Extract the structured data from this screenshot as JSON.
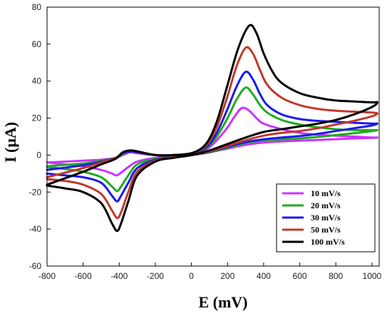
{
  "chart_data": {
    "type": "line",
    "xlabel": "E (mV)",
    "ylabel": "I (μA)",
    "xlim": [
      -800,
      1040
    ],
    "ylim": [
      -60,
      80
    ],
    "x_ticks": [
      -800,
      -600,
      -400,
      -200,
      0,
      200,
      400,
      600,
      800,
      1000
    ],
    "y_ticks": [
      -60,
      -40,
      -20,
      0,
      20,
      40,
      60,
      80
    ],
    "grid": false,
    "legend_position": "bottom-right",
    "series": [
      {
        "name": "10 mV/s",
        "color": "#cc33ff",
        "forward": [
          [
            -800,
            -4
          ],
          [
            -600,
            -3
          ],
          [
            -500,
            -2.5
          ],
          [
            -420,
            -1.5
          ],
          [
            -380,
            0
          ],
          [
            -340,
            1.5
          ],
          [
            -300,
            1
          ],
          [
            -200,
            0
          ],
          [
            -100,
            0
          ],
          [
            0,
            1
          ],
          [
            80,
            3
          ],
          [
            140,
            8
          ],
          [
            200,
            15
          ],
          [
            240,
            21
          ],
          [
            280,
            25.5
          ],
          [
            320,
            24
          ],
          [
            360,
            20
          ],
          [
            400,
            17
          ],
          [
            500,
            14
          ],
          [
            600,
            12
          ],
          [
            700,
            11
          ],
          [
            800,
            10.5
          ],
          [
            900,
            10
          ],
          [
            1000,
            9.5
          ],
          [
            1030,
            9.5
          ]
        ],
        "reverse": [
          [
            1030,
            9.5
          ],
          [
            1000,
            9.3
          ],
          [
            900,
            9
          ],
          [
            800,
            8.6
          ],
          [
            700,
            8.2
          ],
          [
            600,
            7.8
          ],
          [
            500,
            7.4
          ],
          [
            400,
            6.8
          ],
          [
            300,
            5.5
          ],
          [
            200,
            3.5
          ],
          [
            100,
            1.5
          ],
          [
            0,
            0
          ],
          [
            -100,
            -0.8
          ],
          [
            -200,
            -1.5
          ],
          [
            -300,
            -3.5
          ],
          [
            -350,
            -6.5
          ],
          [
            -390,
            -9.5
          ],
          [
            -415,
            -11
          ],
          [
            -440,
            -10
          ],
          [
            -500,
            -8
          ],
          [
            -600,
            -6
          ],
          [
            -700,
            -5
          ],
          [
            -800,
            -4
          ]
        ]
      },
      {
        "name": "20 mV/s",
        "color": "#22aa22",
        "forward": [
          [
            -800,
            -6
          ],
          [
            -600,
            -4.5
          ],
          [
            -500,
            -3
          ],
          [
            -420,
            -1.5
          ],
          [
            -380,
            0.5
          ],
          [
            -340,
            2
          ],
          [
            -300,
            1.5
          ],
          [
            -200,
            0
          ],
          [
            -100,
            0
          ],
          [
            0,
            1
          ],
          [
            80,
            3.5
          ],
          [
            140,
            10
          ],
          [
            200,
            20
          ],
          [
            250,
            30
          ],
          [
            300,
            36.5
          ],
          [
            340,
            33
          ],
          [
            380,
            27
          ],
          [
            420,
            23
          ],
          [
            500,
            19
          ],
          [
            600,
            16.5
          ],
          [
            700,
            15
          ],
          [
            800,
            14
          ],
          [
            900,
            13.5
          ],
          [
            1000,
            13.5
          ],
          [
            1030,
            13.5
          ]
        ],
        "reverse": [
          [
            1030,
            13.5
          ],
          [
            1000,
            13
          ],
          [
            900,
            11.8
          ],
          [
            800,
            10.8
          ],
          [
            700,
            9.8
          ],
          [
            600,
            9
          ],
          [
            500,
            8.5
          ],
          [
            400,
            8
          ],
          [
            300,
            6.5
          ],
          [
            200,
            4
          ],
          [
            100,
            1.5
          ],
          [
            0,
            0
          ],
          [
            -100,
            -1
          ],
          [
            -200,
            -2
          ],
          [
            -300,
            -5
          ],
          [
            -350,
            -11
          ],
          [
            -390,
            -17
          ],
          [
            -412,
            -19.5
          ],
          [
            -440,
            -17
          ],
          [
            -500,
            -12
          ],
          [
            -600,
            -9
          ],
          [
            -700,
            -7.5
          ],
          [
            -800,
            -6.5
          ]
        ]
      },
      {
        "name": "30 mV/s",
        "color": "#1a1aee",
        "forward": [
          [
            -800,
            -8
          ],
          [
            -600,
            -5.5
          ],
          [
            -500,
            -3.5
          ],
          [
            -420,
            -1.5
          ],
          [
            -380,
            1
          ],
          [
            -340,
            2
          ],
          [
            -300,
            1.5
          ],
          [
            -200,
            0
          ],
          [
            -100,
            0
          ],
          [
            0,
            1
          ],
          [
            80,
            4
          ],
          [
            140,
            12
          ],
          [
            200,
            25
          ],
          [
            250,
            37
          ],
          [
            300,
            45
          ],
          [
            340,
            41
          ],
          [
            380,
            33
          ],
          [
            420,
            27
          ],
          [
            500,
            22
          ],
          [
            600,
            19.5
          ],
          [
            700,
            18.5
          ],
          [
            800,
            18
          ],
          [
            900,
            17.5
          ],
          [
            1000,
            17
          ],
          [
            1030,
            17
          ]
        ],
        "reverse": [
          [
            1030,
            17
          ],
          [
            1000,
            16
          ],
          [
            900,
            14.5
          ],
          [
            800,
            13
          ],
          [
            700,
            11.5
          ],
          [
            600,
            10.3
          ],
          [
            500,
            9.5
          ],
          [
            400,
            8.5
          ],
          [
            300,
            7
          ],
          [
            200,
            4.5
          ],
          [
            100,
            1.8
          ],
          [
            0,
            0
          ],
          [
            -100,
            -1
          ],
          [
            -200,
            -2.5
          ],
          [
            -300,
            -7
          ],
          [
            -350,
            -15
          ],
          [
            -390,
            -22
          ],
          [
            -412,
            -25
          ],
          [
            -440,
            -22
          ],
          [
            -500,
            -15
          ],
          [
            -600,
            -12
          ],
          [
            -700,
            -11
          ],
          [
            -800,
            -10
          ]
        ]
      },
      {
        "name": "50 mV/s",
        "color": "#c0392b",
        "forward": [
          [
            -800,
            -12
          ],
          [
            -600,
            -7
          ],
          [
            -500,
            -4
          ],
          [
            -420,
            -1.5
          ],
          [
            -380,
            1.5
          ],
          [
            -340,
            2.5
          ],
          [
            -300,
            2
          ],
          [
            -200,
            0
          ],
          [
            -100,
            0
          ],
          [
            0,
            1
          ],
          [
            80,
            5
          ],
          [
            140,
            15
          ],
          [
            200,
            32
          ],
          [
            250,
            48
          ],
          [
            300,
            58
          ],
          [
            340,
            55
          ],
          [
            380,
            46
          ],
          [
            420,
            38
          ],
          [
            500,
            31
          ],
          [
            600,
            27
          ],
          [
            700,
            25
          ],
          [
            800,
            24
          ],
          [
            900,
            23.5
          ],
          [
            1000,
            23
          ],
          [
            1030,
            22.5
          ]
        ],
        "reverse": [
          [
            1030,
            22.5
          ],
          [
            1000,
            21
          ],
          [
            900,
            18.5
          ],
          [
            800,
            16.5
          ],
          [
            700,
            14.5
          ],
          [
            600,
            13
          ],
          [
            500,
            12
          ],
          [
            400,
            10.5
          ],
          [
            300,
            8
          ],
          [
            200,
            5
          ],
          [
            100,
            2
          ],
          [
            0,
            0
          ],
          [
            -100,
            -1.2
          ],
          [
            -200,
            -3
          ],
          [
            -300,
            -9
          ],
          [
            -350,
            -20
          ],
          [
            -390,
            -31
          ],
          [
            -412,
            -34
          ],
          [
            -440,
            -30
          ],
          [
            -500,
            -21
          ],
          [
            -600,
            -16
          ],
          [
            -700,
            -14
          ],
          [
            -800,
            -13
          ]
        ]
      },
      {
        "name": "100 mV/s",
        "color": "#000000",
        "forward": [
          [
            -800,
            -16
          ],
          [
            -600,
            -9
          ],
          [
            -500,
            -5
          ],
          [
            -420,
            -2
          ],
          [
            -380,
            1.5
          ],
          [
            -340,
            2.5
          ],
          [
            -300,
            2
          ],
          [
            -200,
            0
          ],
          [
            -100,
            0
          ],
          [
            0,
            1
          ],
          [
            80,
            6
          ],
          [
            140,
            18
          ],
          [
            200,
            38
          ],
          [
            260,
            58
          ],
          [
            320,
            70
          ],
          [
            360,
            66
          ],
          [
            400,
            55
          ],
          [
            450,
            45
          ],
          [
            500,
            39
          ],
          [
            600,
            33.5
          ],
          [
            700,
            31
          ],
          [
            800,
            29.5
          ],
          [
            900,
            29
          ],
          [
            1000,
            28.5
          ],
          [
            1030,
            28.5
          ]
        ],
        "reverse": [
          [
            1030,
            28.5
          ],
          [
            1000,
            26
          ],
          [
            900,
            22
          ],
          [
            800,
            19
          ],
          [
            700,
            17
          ],
          [
            600,
            15.5
          ],
          [
            500,
            14
          ],
          [
            400,
            12.5
          ],
          [
            300,
            9.5
          ],
          [
            200,
            6
          ],
          [
            100,
            2.5
          ],
          [
            0,
            0
          ],
          [
            -100,
            -1.5
          ],
          [
            -200,
            -3.5
          ],
          [
            -300,
            -11
          ],
          [
            -350,
            -25
          ],
          [
            -390,
            -37
          ],
          [
            -412,
            -41
          ],
          [
            -440,
            -37
          ],
          [
            -500,
            -26
          ],
          [
            -600,
            -20
          ],
          [
            -700,
            -18
          ],
          [
            -800,
            -16.5
          ]
        ]
      }
    ]
  }
}
